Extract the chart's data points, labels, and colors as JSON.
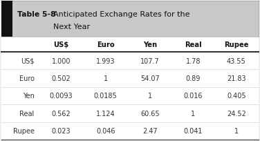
{
  "title_label": "Table 5-8",
  "title_text": "Anticipated Exchange Rates for the\nNext Year",
  "col_headers": [
    "US$",
    "Euro",
    "Yen",
    "Real",
    "Rupee"
  ],
  "row_headers": [
    "US$",
    "Euro",
    "Yen",
    "Real",
    "Rupee"
  ],
  "table_data": [
    [
      "1.000",
      "1.993",
      "107.7",
      "1.78",
      "43.55"
    ],
    [
      "0.502",
      "1",
      "54.07",
      "0.89",
      "21.83"
    ],
    [
      "0.0093",
      "0.0185",
      "1",
      "0.016",
      "0.405"
    ],
    [
      "0.562",
      "1.124",
      "60.65",
      "1",
      "24.52"
    ],
    [
      "0.023",
      "0.046",
      "2.47",
      "0.041",
      "1"
    ]
  ],
  "title_bg": "#c8c8c8",
  "black_box_color": "#111111",
  "border_color": "#888888",
  "text_color": "#333333",
  "fig_bg": "#f0f0f0"
}
